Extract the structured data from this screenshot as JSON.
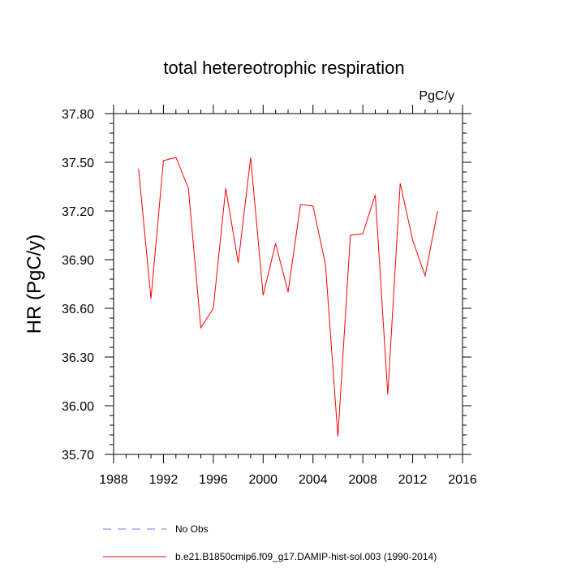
{
  "chart_data": {
    "type": "line",
    "title": "total hetereotrophic respiration",
    "units_label": "PgC/y",
    "ylabel": "HR  (PgC/y)",
    "xlabel": "",
    "xlim": [
      1988,
      2016
    ],
    "ylim": [
      35.7,
      37.8
    ],
    "x_ticks": [
      1988,
      1992,
      1996,
      2000,
      2004,
      2008,
      2012,
      2016
    ],
    "x_tick_labels": [
      "1988",
      "1992",
      "1996",
      "2000",
      "2004",
      "2008",
      "2012",
      "2016"
    ],
    "y_ticks": [
      35.7,
      36.0,
      36.3,
      36.6,
      36.9,
      37.2,
      37.5,
      37.8
    ],
    "y_tick_labels": [
      "35.70",
      "36.00",
      "36.30",
      "36.60",
      "36.90",
      "37.20",
      "37.50",
      "37.80"
    ],
    "grid": false,
    "legend_position": "bottom",
    "series": [
      {
        "name": "No Obs",
        "color": "#7777ee",
        "style": "dashed",
        "x": [],
        "y": []
      },
      {
        "name": "b.e21.B1850cmip6.f09_g17.DAMIP-hist-sol.003 (1990-2014)",
        "color": "#ff0000",
        "style": "solid",
        "x": [
          1990,
          1991,
          1992,
          1993,
          1994,
          1995,
          1996,
          1997,
          1998,
          1999,
          2000,
          2001,
          2002,
          2003,
          2004,
          2005,
          2006,
          2007,
          2008,
          2009,
          2010,
          2011,
          2012,
          2013,
          2014
        ],
        "y": [
          37.46,
          36.66,
          37.51,
          37.53,
          37.34,
          36.48,
          36.6,
          37.34,
          36.88,
          37.53,
          36.68,
          37.0,
          36.7,
          37.24,
          37.23,
          36.87,
          35.81,
          37.05,
          37.06,
          37.3,
          36.07,
          37.37,
          37.02,
          36.8,
          37.2
        ]
      }
    ]
  }
}
